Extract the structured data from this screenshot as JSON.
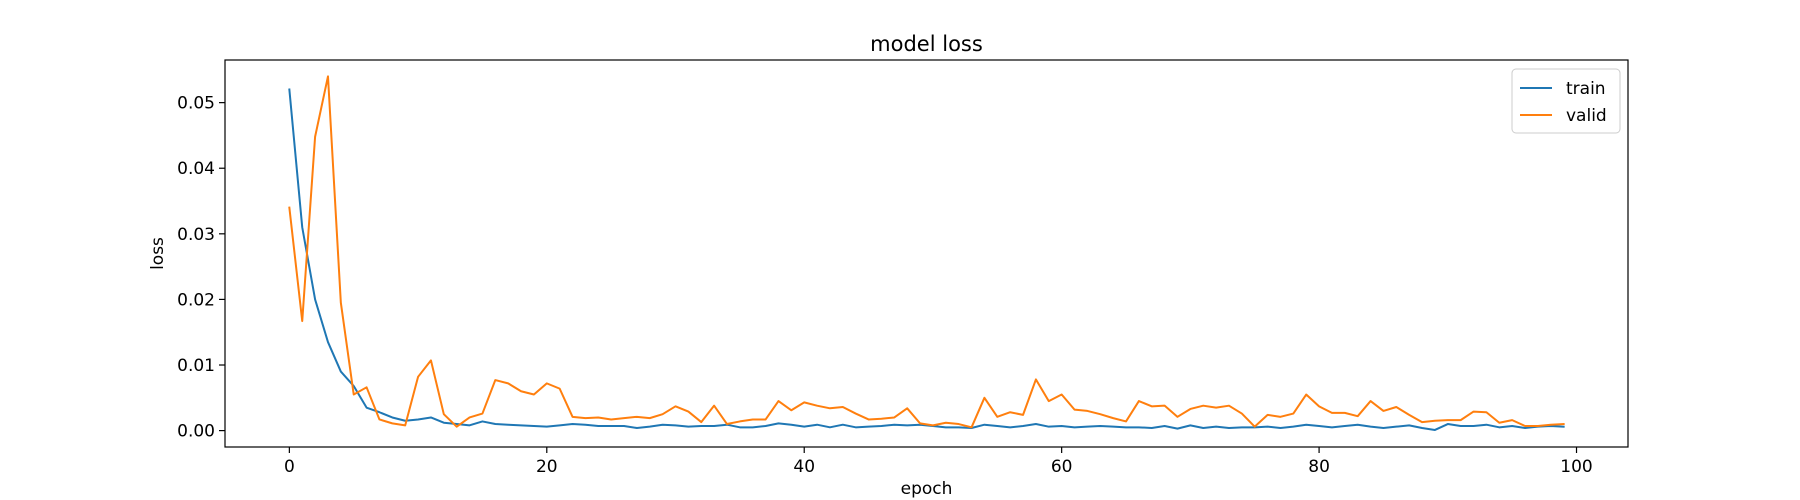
{
  "chart_data": {
    "type": "line",
    "title": "model loss",
    "xlabel": "epoch",
    "ylabel": "loss",
    "xlim": [
      -5,
      104
    ],
    "ylim": [
      -0.0025,
      0.0565
    ],
    "xticks": [
      0,
      20,
      40,
      60,
      80,
      100
    ],
    "xtick_labels": [
      "0",
      "20",
      "40",
      "60",
      "80",
      "100"
    ],
    "yticks": [
      0.0,
      0.01,
      0.02,
      0.03,
      0.04,
      0.05
    ],
    "ytick_labels": [
      "0.00",
      "0.01",
      "0.02",
      "0.03",
      "0.04",
      "0.05"
    ],
    "grid": false,
    "legend_position": "top-right",
    "x": [
      0,
      1,
      2,
      3,
      4,
      5,
      6,
      7,
      8,
      9,
      10,
      11,
      12,
      13,
      14,
      15,
      16,
      17,
      18,
      19,
      20,
      21,
      22,
      23,
      24,
      25,
      26,
      27,
      28,
      29,
      30,
      31,
      32,
      33,
      34,
      35,
      36,
      37,
      38,
      39,
      40,
      41,
      42,
      43,
      44,
      45,
      46,
      47,
      48,
      49,
      50,
      51,
      52,
      53,
      54,
      55,
      56,
      57,
      58,
      59,
      60,
      61,
      62,
      63,
      64,
      65,
      66,
      67,
      68,
      69,
      70,
      71,
      72,
      73,
      74,
      75,
      76,
      77,
      78,
      79,
      80,
      81,
      82,
      83,
      84,
      85,
      86,
      87,
      88,
      89,
      90,
      91,
      92,
      93,
      94,
      95,
      96,
      97,
      98,
      99
    ],
    "series": [
      {
        "name": "train",
        "color": "#1f77b4",
        "values": [
          0.052,
          0.031,
          0.02,
          0.0135,
          0.009,
          0.0068,
          0.0035,
          0.0028,
          0.002,
          0.0015,
          0.0017,
          0.002,
          0.0012,
          0.001,
          0.0008,
          0.0014,
          0.001,
          0.0009,
          0.0008,
          0.0007,
          0.0006,
          0.0008,
          0.001,
          0.0009,
          0.0007,
          0.0007,
          0.0007,
          0.0004,
          0.0006,
          0.0009,
          0.0008,
          0.0006,
          0.0007,
          0.0007,
          0.0009,
          0.0005,
          0.0005,
          0.0007,
          0.0011,
          0.0009,
          0.0006,
          0.0009,
          0.0005,
          0.0009,
          0.0005,
          0.0006,
          0.0007,
          0.0009,
          0.0008,
          0.0009,
          0.0007,
          0.0005,
          0.0005,
          0.0004,
          0.0009,
          0.0007,
          0.0005,
          0.0007,
          0.001,
          0.0006,
          0.0007,
          0.0005,
          0.0006,
          0.0007,
          0.0006,
          0.0005,
          0.0005,
          0.0004,
          0.0007,
          0.0003,
          0.0008,
          0.0004,
          0.0006,
          0.0004,
          0.0005,
          0.0005,
          0.0006,
          0.0004,
          0.0006,
          0.0009,
          0.0007,
          0.0005,
          0.0007,
          0.0009,
          0.0006,
          0.0004,
          0.0006,
          0.0008,
          0.0004,
          0.0001,
          0.001,
          0.0007,
          0.0007,
          0.0009,
          0.0005,
          0.0007,
          0.0004,
          0.0006,
          0.0007,
          0.0006
        ]
      },
      {
        "name": "valid",
        "color": "#ff7f0e",
        "values": [
          0.034,
          0.0167,
          0.0448,
          0.054,
          0.0195,
          0.0055,
          0.0066,
          0.0017,
          0.0011,
          0.0008,
          0.0082,
          0.0107,
          0.0025,
          0.0006,
          0.002,
          0.0026,
          0.0077,
          0.0072,
          0.006,
          0.0055,
          0.0072,
          0.0064,
          0.0021,
          0.0019,
          0.002,
          0.0017,
          0.0019,
          0.0021,
          0.0019,
          0.0025,
          0.0037,
          0.0029,
          0.0013,
          0.0038,
          0.001,
          0.0014,
          0.0017,
          0.0017,
          0.0045,
          0.0031,
          0.0043,
          0.0038,
          0.0034,
          0.0036,
          0.0026,
          0.0017,
          0.0018,
          0.002,
          0.0034,
          0.0011,
          0.0008,
          0.0012,
          0.001,
          0.0005,
          0.005,
          0.0021,
          0.0028,
          0.0024,
          0.0078,
          0.0045,
          0.0055,
          0.0032,
          0.003,
          0.0025,
          0.0019,
          0.0014,
          0.0045,
          0.0037,
          0.0038,
          0.0021,
          0.0033,
          0.0038,
          0.0035,
          0.0038,
          0.0026,
          0.0006,
          0.0024,
          0.0021,
          0.0026,
          0.0055,
          0.0037,
          0.0027,
          0.0027,
          0.0022,
          0.0045,
          0.003,
          0.0036,
          0.0024,
          0.0013,
          0.0015,
          0.0016,
          0.0016,
          0.0029,
          0.0028,
          0.0012,
          0.0016,
          0.0007,
          0.0007,
          0.0009,
          0.001
        ]
      }
    ]
  }
}
